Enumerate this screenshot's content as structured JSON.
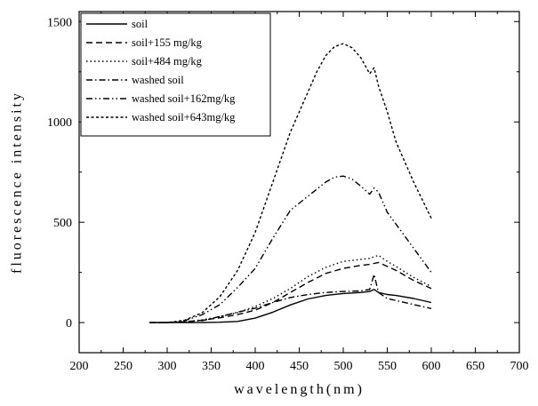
{
  "chart_data": {
    "type": "line",
    "xlabel": "wavelength(nm)",
    "ylabel": "fluorescence   intensity",
    "xlim": [
      200,
      700
    ],
    "ylim": [
      -150,
      1550
    ],
    "xticks": [
      200,
      250,
      300,
      350,
      400,
      450,
      500,
      550,
      600,
      650,
      700
    ],
    "yticks": [
      0,
      500,
      1000,
      1500
    ],
    "legend_position": "top-left",
    "grid": false,
    "series": [
      {
        "name": "soil",
        "dash": "solid",
        "x": [
          280,
          300,
          320,
          340,
          360,
          380,
          400,
          420,
          440,
          460,
          480,
          500,
          520,
          530,
          535,
          540,
          550,
          560,
          580,
          600
        ],
        "y": [
          0,
          0,
          0,
          0,
          2,
          6,
          22,
          52,
          88,
          118,
          135,
          145,
          150,
          155,
          165,
          150,
          140,
          135,
          120,
          100
        ]
      },
      {
        "name": "soil+155 mg/kg",
        "dash": "dash",
        "x": [
          280,
          300,
          320,
          340,
          360,
          380,
          400,
          420,
          440,
          460,
          480,
          500,
          520,
          530,
          540,
          550,
          560,
          580,
          600
        ],
        "y": [
          0,
          0,
          4,
          12,
          24,
          40,
          62,
          100,
          150,
          200,
          245,
          270,
          285,
          290,
          300,
          280,
          260,
          210,
          170
        ]
      },
      {
        "name": "soil+484 mg/kg",
        "dash": "dot",
        "x": [
          280,
          300,
          320,
          340,
          360,
          380,
          400,
          420,
          440,
          460,
          480,
          500,
          520,
          530,
          540,
          550,
          560,
          580,
          600
        ],
        "y": [
          0,
          0,
          4,
          14,
          30,
          50,
          80,
          120,
          170,
          230,
          275,
          305,
          315,
          320,
          335,
          305,
          280,
          225,
          180
        ]
      },
      {
        "name": "washed soil",
        "dash": "dashdot",
        "x": [
          280,
          300,
          320,
          340,
          360,
          380,
          400,
          420,
          440,
          460,
          480,
          500,
          520,
          530,
          535,
          540,
          550,
          560,
          580,
          600
        ],
        "y": [
          0,
          0,
          3,
          10,
          30,
          52,
          72,
          100,
          125,
          140,
          150,
          155,
          158,
          165,
          240,
          150,
          120,
          110,
          90,
          70
        ]
      },
      {
        "name": "washed soil+162mg/kg",
        "dash": "dashdotdot",
        "x": [
          280,
          300,
          320,
          340,
          360,
          380,
          400,
          420,
          440,
          460,
          480,
          490,
          500,
          510,
          520,
          530,
          535,
          540,
          550,
          560,
          580,
          600
        ],
        "y": [
          0,
          0,
          10,
          40,
          90,
          175,
          270,
          420,
          560,
          630,
          700,
          725,
          730,
          715,
          680,
          640,
          670,
          650,
          550,
          490,
          370,
          250
        ]
      },
      {
        "name": "washed soil+643mg/kg",
        "dash": "shortdash",
        "x": [
          280,
          300,
          320,
          340,
          360,
          380,
          400,
          420,
          440,
          460,
          470,
          480,
          490,
          500,
          510,
          520,
          530,
          535,
          540,
          550,
          560,
          580,
          600
        ],
        "y": [
          0,
          0,
          12,
          50,
          130,
          260,
          450,
          700,
          950,
          1150,
          1250,
          1330,
          1375,
          1390,
          1370,
          1320,
          1240,
          1270,
          1180,
          1050,
          900,
          700,
          520
        ]
      }
    ]
  }
}
